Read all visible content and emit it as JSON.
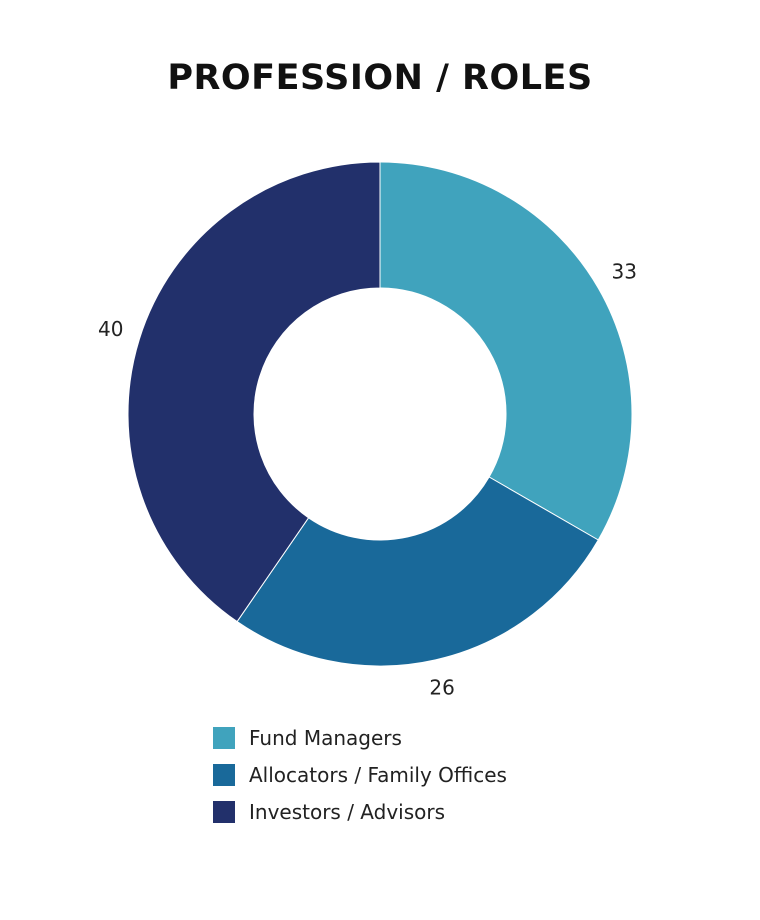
{
  "chart_data": {
    "type": "pie",
    "title": "PROFESSION / ROLES",
    "subtype": "donut",
    "categories": [
      "Fund Managers",
      "Allocators / Family Offices",
      "Investors / Advisors"
    ],
    "values": [
      33,
      26,
      40
    ],
    "data_labels": [
      "33",
      "26",
      "40"
    ],
    "colors": [
      "#40A3BD",
      "#19699A",
      "#22306B"
    ],
    "start_angle": "12 o'clock",
    "direction": "clockwise",
    "legend_position": "bottom"
  }
}
